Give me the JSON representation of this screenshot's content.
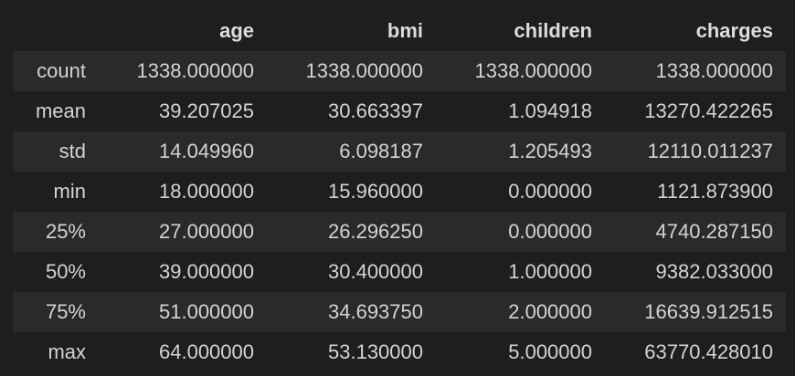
{
  "table": {
    "columns": [
      "",
      "age",
      "bmi",
      "children",
      "charges"
    ],
    "rows": [
      {
        "index": "count",
        "values": [
          "1338.000000",
          "1338.000000",
          "1338.000000",
          "1338.000000"
        ]
      },
      {
        "index": "mean",
        "values": [
          "39.207025",
          "30.663397",
          "1.094918",
          "13270.422265"
        ]
      },
      {
        "index": "std",
        "values": [
          "14.049960",
          "6.098187",
          "1.205493",
          "12110.011237"
        ]
      },
      {
        "index": "min",
        "values": [
          "18.000000",
          "15.960000",
          "0.000000",
          "1121.873900"
        ]
      },
      {
        "index": "25%",
        "values": [
          "27.000000",
          "26.296250",
          "0.000000",
          "4740.287150"
        ]
      },
      {
        "index": "50%",
        "values": [
          "39.000000",
          "30.400000",
          "1.000000",
          "9382.033000"
        ]
      },
      {
        "index": "75%",
        "values": [
          "51.000000",
          "34.693750",
          "2.000000",
          "16639.912515"
        ]
      },
      {
        "index": "max",
        "values": [
          "64.000000",
          "53.130000",
          "5.000000",
          "63770.428010"
        ]
      }
    ]
  }
}
